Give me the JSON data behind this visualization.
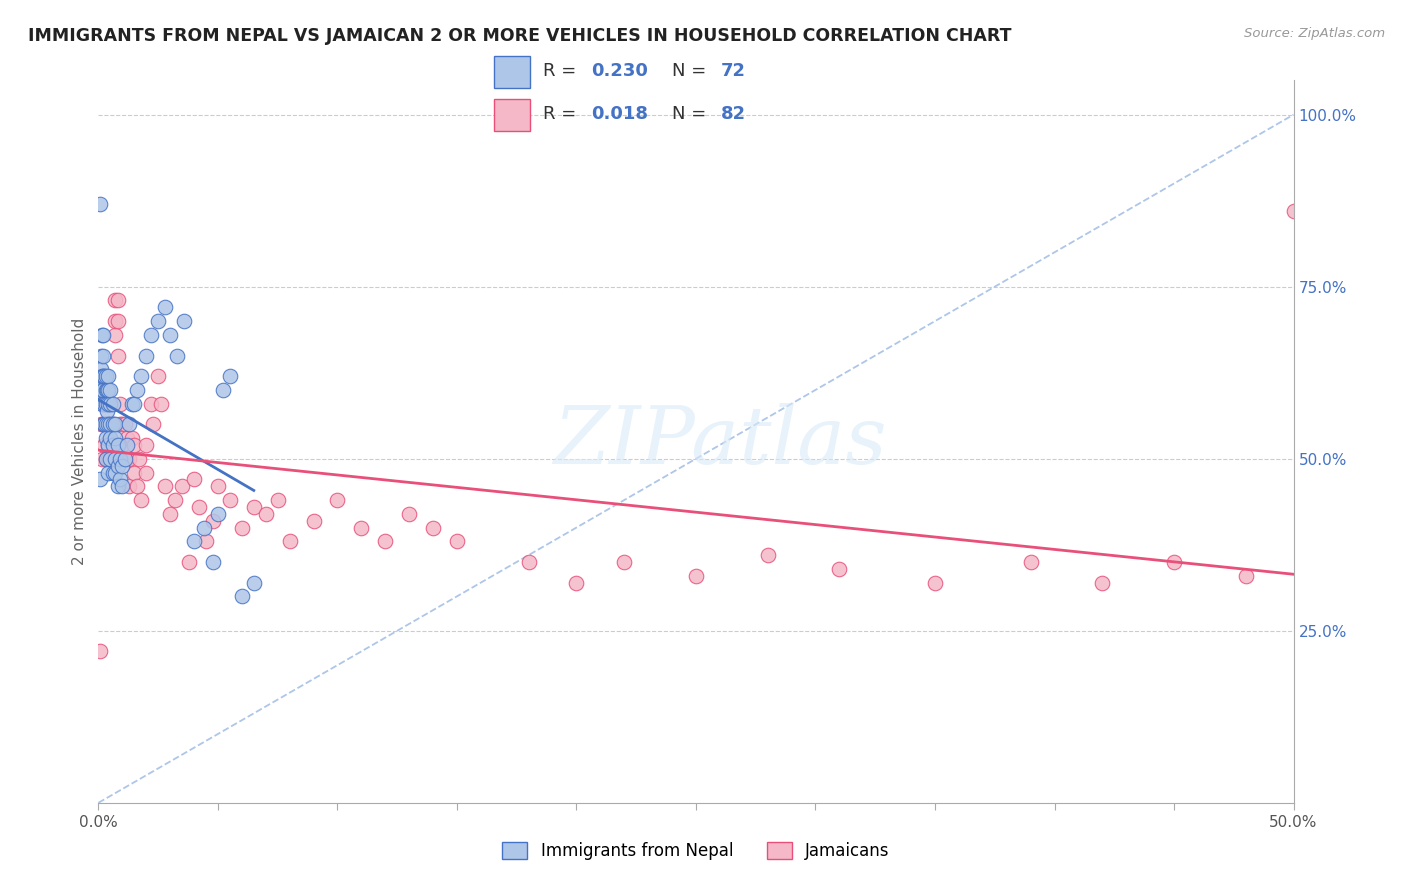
{
  "title": "IMMIGRANTS FROM NEPAL VS JAMAICAN 2 OR MORE VEHICLES IN HOUSEHOLD CORRELATION CHART",
  "source": "Source: ZipAtlas.com",
  "ylabel": "2 or more Vehicles in Household",
  "x_min": 0.0,
  "x_max": 0.5,
  "y_min": 0.0,
  "y_max": 1.05,
  "y_ticks_right": [
    0.25,
    0.5,
    0.75,
    1.0
  ],
  "y_tick_labels_right": [
    "25.0%",
    "50.0%",
    "75.0%",
    "100.0%"
  ],
  "nepal_R": 0.23,
  "nepal_N": 72,
  "jamaican_R": 0.018,
  "jamaican_N": 82,
  "nepal_color": "#aec6e8",
  "jamaican_color": "#f4b8c8",
  "nepal_edge_color": "#4472c4",
  "jamaican_edge_color": "#e8507a",
  "nepal_line_color": "#4472c4",
  "jamaican_line_color": "#e8507a",
  "ref_line_color": "#aec6e8",
  "watermark": "ZIPatlas",
  "nepal_x": [
    0.0005,
    0.0008,
    0.001,
    0.001,
    0.0012,
    0.0013,
    0.0015,
    0.0015,
    0.0018,
    0.002,
    0.002,
    0.002,
    0.002,
    0.0022,
    0.0025,
    0.0025,
    0.003,
    0.003,
    0.003,
    0.003,
    0.003,
    0.0032,
    0.0035,
    0.0035,
    0.004,
    0.004,
    0.004,
    0.004,
    0.004,
    0.004,
    0.005,
    0.005,
    0.005,
    0.005,
    0.005,
    0.006,
    0.006,
    0.006,
    0.006,
    0.007,
    0.007,
    0.007,
    0.007,
    0.008,
    0.008,
    0.008,
    0.009,
    0.009,
    0.01,
    0.01,
    0.011,
    0.012,
    0.013,
    0.014,
    0.015,
    0.016,
    0.018,
    0.02,
    0.022,
    0.025,
    0.028,
    0.03,
    0.033,
    0.036,
    0.04,
    0.044,
    0.048,
    0.05,
    0.052,
    0.055,
    0.06,
    0.065
  ],
  "nepal_y": [
    0.87,
    0.47,
    0.6,
    0.65,
    0.63,
    0.68,
    0.58,
    0.62,
    0.55,
    0.6,
    0.62,
    0.65,
    0.68,
    0.55,
    0.58,
    0.62,
    0.5,
    0.55,
    0.58,
    0.6,
    0.62,
    0.53,
    0.57,
    0.6,
    0.48,
    0.52,
    0.55,
    0.58,
    0.6,
    0.62,
    0.5,
    0.53,
    0.55,
    0.58,
    0.6,
    0.48,
    0.52,
    0.55,
    0.58,
    0.48,
    0.5,
    0.53,
    0.55,
    0.46,
    0.49,
    0.52,
    0.47,
    0.5,
    0.46,
    0.49,
    0.5,
    0.52,
    0.55,
    0.58,
    0.58,
    0.6,
    0.62,
    0.65,
    0.68,
    0.7,
    0.72,
    0.68,
    0.65,
    0.7,
    0.38,
    0.4,
    0.35,
    0.42,
    0.6,
    0.62,
    0.3,
    0.32
  ],
  "jamaican_x": [
    0.0005,
    0.001,
    0.0015,
    0.002,
    0.002,
    0.0025,
    0.003,
    0.003,
    0.003,
    0.004,
    0.004,
    0.004,
    0.004,
    0.005,
    0.005,
    0.005,
    0.005,
    0.006,
    0.006,
    0.006,
    0.007,
    0.007,
    0.007,
    0.008,
    0.008,
    0.008,
    0.009,
    0.009,
    0.01,
    0.01,
    0.011,
    0.012,
    0.012,
    0.013,
    0.013,
    0.014,
    0.015,
    0.015,
    0.016,
    0.017,
    0.018,
    0.02,
    0.02,
    0.022,
    0.023,
    0.025,
    0.026,
    0.028,
    0.03,
    0.032,
    0.035,
    0.038,
    0.04,
    0.042,
    0.045,
    0.048,
    0.05,
    0.055,
    0.06,
    0.065,
    0.07,
    0.075,
    0.08,
    0.09,
    0.1,
    0.11,
    0.12,
    0.13,
    0.14,
    0.15,
    0.18,
    0.2,
    0.22,
    0.25,
    0.28,
    0.31,
    0.35,
    0.39,
    0.42,
    0.45,
    0.48,
    0.5
  ],
  "jamaican_y": [
    0.22,
    0.55,
    0.5,
    0.55,
    0.58,
    0.52,
    0.5,
    0.55,
    0.58,
    0.5,
    0.52,
    0.55,
    0.58,
    0.5,
    0.53,
    0.55,
    0.58,
    0.5,
    0.52,
    0.55,
    0.68,
    0.7,
    0.73,
    0.65,
    0.7,
    0.73,
    0.55,
    0.58,
    0.52,
    0.55,
    0.55,
    0.5,
    0.53,
    0.46,
    0.5,
    0.53,
    0.48,
    0.52,
    0.46,
    0.5,
    0.44,
    0.48,
    0.52,
    0.58,
    0.55,
    0.62,
    0.58,
    0.46,
    0.42,
    0.44,
    0.46,
    0.35,
    0.47,
    0.43,
    0.38,
    0.41,
    0.46,
    0.44,
    0.4,
    0.43,
    0.42,
    0.44,
    0.38,
    0.41,
    0.44,
    0.4,
    0.38,
    0.42,
    0.4,
    0.38,
    0.35,
    0.32,
    0.35,
    0.33,
    0.36,
    0.34,
    0.32,
    0.35,
    0.32,
    0.35,
    0.33,
    0.86
  ]
}
